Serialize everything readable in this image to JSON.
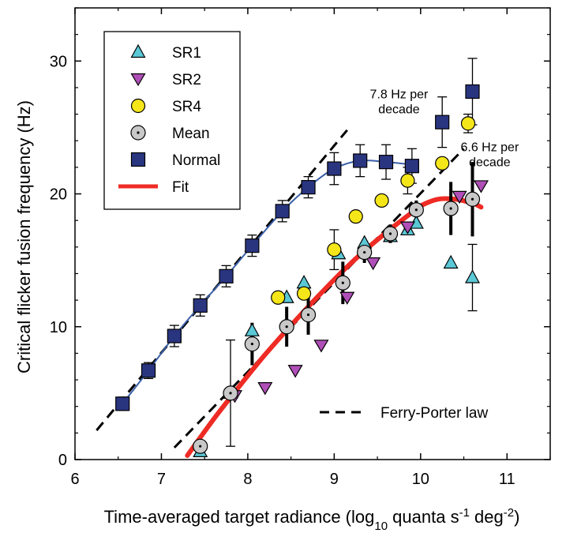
{
  "chart_data": {
    "type": "scatter",
    "xlabel": "Time-averaged target radiance (log10 quanta s-1 deg-2)",
    "xlabel_parts": {
      "pre": "Time-averaged target radiance (log",
      "sub10": "10",
      "mid": " quanta s",
      "sup1": "-1",
      "mid2": " deg",
      "sup2": "-2",
      "post": ")"
    },
    "ylabel": "Critical flicker fusion frequency (Hz)",
    "xlim": [
      6,
      11.5
    ],
    "ylim": [
      0,
      34
    ],
    "xticks": [
      6,
      7,
      8,
      9,
      10,
      11
    ],
    "yticks": [
      0,
      10,
      20,
      30
    ],
    "grid": false,
    "legend_position": "top-left",
    "legend": [
      {
        "name": "SR1",
        "marker": "triangle-up",
        "color": "#5bc8d6"
      },
      {
        "name": "SR2",
        "marker": "triangle-down",
        "color": "#b04fb8"
      },
      {
        "name": "SR4",
        "marker": "circle",
        "color": "#f5e619"
      },
      {
        "name": "Mean",
        "marker": "circle-dot",
        "color": "#c8c8c8"
      },
      {
        "name": "Normal",
        "marker": "square",
        "color": "#2a3580"
      },
      {
        "name": "Fit",
        "marker": "line",
        "color": "#ee2b24"
      }
    ],
    "series": [
      {
        "name": "SR1",
        "x": [
          7.45,
          7.8,
          8.05,
          8.45,
          8.65,
          9.05,
          9.35,
          9.65,
          9.85,
          9.95,
          10.35,
          10.6
        ],
        "y": [
          0.6,
          5.0,
          9.7,
          12.2,
          13.3,
          15.5,
          16.3,
          16.8,
          17.3,
          17.8,
          14.8,
          13.7
        ],
        "err": [
          null,
          null,
          null,
          null,
          null,
          null,
          null,
          null,
          null,
          null,
          null,
          2.5
        ]
      },
      {
        "name": "SR2",
        "x": [
          7.85,
          8.2,
          8.55,
          8.85,
          9.15,
          9.45,
          9.85,
          10.45,
          10.7
        ],
        "y": [
          4.8,
          5.4,
          6.7,
          8.6,
          12.2,
          14.8,
          17.5,
          19.8,
          20.6
        ]
      },
      {
        "name": "SR4",
        "x": [
          8.35,
          8.65,
          9.0,
          9.25,
          9.55,
          9.85,
          10.25,
          10.55
        ],
        "y": [
          12.2,
          12.5,
          15.8,
          18.3,
          19.5,
          21.0,
          22.3,
          25.3
        ],
        "err": [
          null,
          null,
          1.5,
          null,
          null,
          1.0,
          null,
          0.7
        ]
      },
      {
        "name": "Mean",
        "x": [
          7.45,
          7.8,
          8.05,
          8.45,
          8.7,
          9.1,
          9.35,
          9.65,
          9.95,
          10.35,
          10.6
        ],
        "y": [
          1.0,
          5.0,
          8.7,
          10.0,
          10.9,
          13.3,
          15.6,
          17.0,
          18.8,
          18.9,
          19.6
        ],
        "err": [
          null,
          4.0,
          1.6,
          1.5,
          1.5,
          1.6,
          0.8,
          0.7,
          0.7,
          2.0,
          2.8
        ]
      },
      {
        "name": "Normal",
        "x": [
          6.55,
          6.85,
          7.15,
          7.45,
          7.75,
          8.05,
          8.4,
          8.7,
          9.0,
          9.3,
          9.6,
          9.9,
          10.25,
          10.6
        ],
        "y": [
          4.2,
          6.7,
          9.3,
          11.6,
          13.8,
          16.1,
          18.7,
          20.5,
          21.9,
          22.5,
          22.4,
          22.1,
          25.4,
          27.7
        ],
        "err": [
          0.5,
          0.6,
          0.8,
          0.8,
          0.8,
          0.8,
          0.8,
          0.8,
          1.2,
          1.2,
          1.3,
          1.3,
          1.9,
          2.5
        ]
      },
      {
        "name": "Fit",
        "x": [
          7.3,
          7.6,
          7.9,
          8.2,
          8.5,
          8.8,
          9.1,
          9.4,
          9.7,
          9.9,
          10.0,
          10.2,
          10.4,
          10.6,
          10.7
        ],
        "y": [
          0.3,
          3.0,
          5.5,
          7.9,
          10.1,
          12.2,
          14.2,
          16.0,
          17.6,
          18.6,
          19.1,
          19.6,
          19.6,
          19.3,
          19.0
        ]
      },
      {
        "name": "Normal-fit",
        "x": [
          6.55,
          6.85,
          7.15,
          7.45,
          7.75,
          8.05,
          8.4,
          8.7,
          9.0,
          9.3,
          9.6,
          9.9
        ],
        "y": [
          4.2,
          6.7,
          9.3,
          11.6,
          13.8,
          16.1,
          18.7,
          20.5,
          21.9,
          22.5,
          22.4,
          22.2
        ]
      },
      {
        "name": "Ferry-Porter law",
        "lines": [
          {
            "x": [
              6.25,
              9.15
            ],
            "y": [
              2.2,
              24.8
            ]
          },
          {
            "x": [
              7.15,
              10.5
            ],
            "y": [
              0.9,
              23.4
            ]
          }
        ]
      }
    ],
    "annotations": [
      {
        "text_lines": [
          "7.8 Hz per",
          "decade"
        ],
        "x": 9.75,
        "y": 27.2
      },
      {
        "text_lines": [
          "6.6 Hz per",
          "decade"
        ],
        "x": 10.8,
        "y": 23.2
      }
    ],
    "ferry_porter_legend_label": "Ferry-Porter law"
  }
}
